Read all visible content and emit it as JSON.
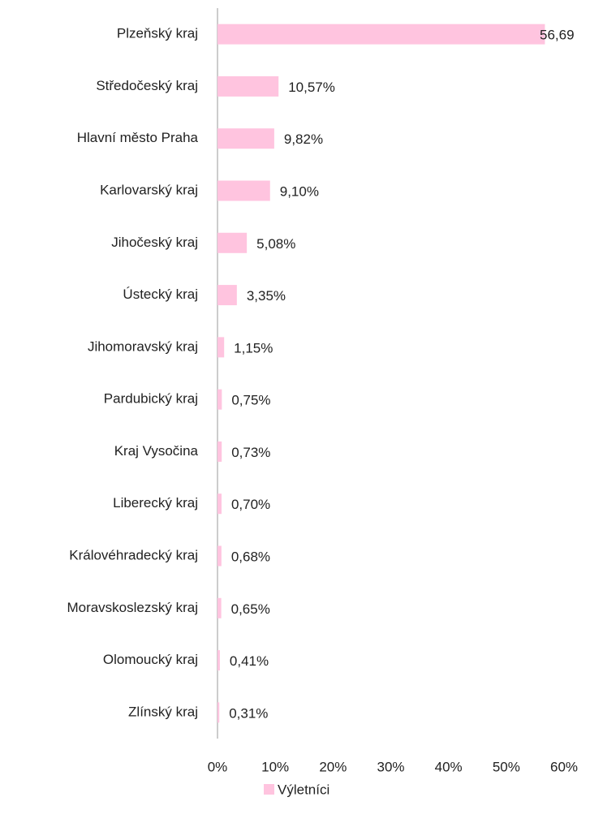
{
  "chart_data": {
    "type": "barh",
    "categories": [
      "Plzeňský kraj",
      "Středočeský kraj",
      "Hlavní město Praha",
      "Karlovarský kraj",
      "Jihočeský kraj",
      "Ústecký kraj",
      "Jihomoravský kraj",
      "Pardubický kraj",
      "Kraj Vysočina",
      "Liberecký kraj",
      "Královéhradecký kraj",
      "Moravskoslezský kraj",
      "Olomoucký kraj",
      "Zlínský kraj"
    ],
    "series": [
      {
        "name": "Výletníci",
        "color": "#ffc4df",
        "values": [
          56.69,
          10.57,
          9.82,
          9.1,
          5.08,
          3.35,
          1.15,
          0.75,
          0.73,
          0.7,
          0.68,
          0.65,
          0.41,
          0.31
        ],
        "value_labels": [
          "56,69",
          "10,57%",
          "9,82%",
          "9,10%",
          "5,08%",
          "3,35%",
          "1,15%",
          "0,75%",
          "0,73%",
          "0,70%",
          "0,68%",
          "0,65%",
          "0,41%",
          "0,31%"
        ]
      }
    ],
    "xlim": [
      0,
      60
    ],
    "xticks": [
      {
        "value": 0,
        "label": "0%"
      },
      {
        "value": 10,
        "label": "10%"
      },
      {
        "value": 20,
        "label": "20%"
      },
      {
        "value": 30,
        "label": "30%"
      },
      {
        "value": 40,
        "label": "40%"
      },
      {
        "value": 50,
        "label": "50%"
      },
      {
        "value": 60,
        "label": "60%"
      }
    ],
    "grid": false,
    "legend": "bottom"
  }
}
